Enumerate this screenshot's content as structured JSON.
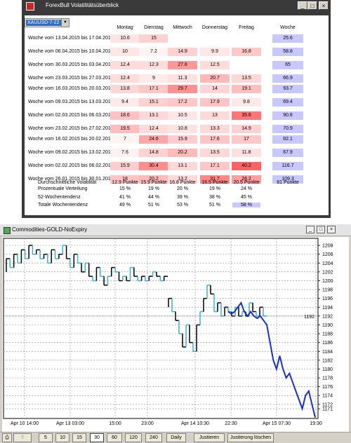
{
  "vol_window": {
    "title": "ForexBull Volatilitätsüberblick",
    "symbol": "XAUUSD-7-22",
    "columns": [
      "Montag",
      "Dienstag",
      "Mittwoch",
      "Donnerstag",
      "Freitag",
      "Woche"
    ],
    "groups": [
      [
        {
          "label": "Woche vom 13.04.2015 bis 17.04.2015",
          "values": [
            "10.6",
            "15",
            "",
            "",
            "",
            "25.6"
          ]
        },
        {
          "label": "Woche vom 06.04.2015 bis 10.04.2015",
          "values": [
            "10",
            "7.2",
            "14.9",
            "9.9",
            "16.8",
            "58.8"
          ]
        },
        {
          "label": "Woche vom 30.03.2015 bis 03.04.2015",
          "values": [
            "12.4",
            "12.3",
            "27.8",
            "12.5",
            "",
            "65"
          ]
        },
        {
          "label": "Woche vom 23.03.2015 bis 27.03.2015",
          "values": [
            "12.4",
            "9",
            "11.3",
            "20.7",
            "13.5",
            "66.9"
          ]
        }
      ],
      [
        {
          "label": "Woche vom 16.03.2015 bis 20.03.2015",
          "values": [
            "13.8",
            "17.1",
            "29.7",
            "14",
            "19.1",
            "93.7"
          ]
        },
        {
          "label": "Woche vom 09.03.2015 bis 13.03.2015",
          "values": [
            "9.4",
            "15.1",
            "17.2",
            "17.9",
            "9.8",
            "69.4"
          ]
        },
        {
          "label": "Woche vom 02.03.2015 bis 06.03.2015",
          "values": [
            "18.6",
            "13.1",
            "10.5",
            "13",
            "35.6",
            "90.8"
          ]
        },
        {
          "label": "Woche vom 23.02.2015 bis 27.02.2015",
          "values": [
            "19.5",
            "12.4",
            "10.8",
            "13.3",
            "14.9",
            "70.9"
          ]
        }
      ],
      [
        {
          "label": "Woche vom 16.02.2015 bis 20.02.2015",
          "values": [
            "7",
            "24.6",
            "15.9",
            "17.6",
            "17",
            "82.1"
          ]
        },
        {
          "label": "Woche vom 09.02.2015 bis 13.02.2015",
          "values": [
            "7.6",
            "14.8",
            "20.2",
            "13.5",
            "11.8",
            "67.9"
          ]
        },
        {
          "label": "Woche vom 02.02.2015 bis 06.02.2015",
          "values": [
            "15.9",
            "30.4",
            "13.1",
            "17.1",
            "40.2",
            "116.7"
          ]
        },
        {
          "label": "Woche vom 26.01.2015 bis 30.01.2015",
          "values": [
            "18",
            "20.2",
            "13.2",
            "31.7",
            "26.2",
            "109.3"
          ]
        }
      ]
    ],
    "stats": [
      {
        "label": "Durchschnittliche Volatilität",
        "values": [
          "12.9 Punkte",
          "15.9 Punkte",
          "16.8 Punkte",
          "16.5 Punkte",
          "20.5 Punkte",
          "81 Punkte"
        ]
      },
      {
        "label": "Prozentuale Verteilung",
        "values": [
          "15 %",
          "19 %",
          "20 %",
          "19 %",
          "24 %",
          ""
        ]
      },
      {
        "label": "52-Wochentendenz",
        "values": [
          "41 %",
          "44 %",
          "39 %",
          "38 %",
          "45 %",
          ""
        ]
      },
      {
        "label": "Totale Wochentendenz",
        "values": [
          "49 %",
          "51 %",
          "53 %",
          "51 %",
          "58 %",
          ""
        ]
      }
    ]
  },
  "chart_window": {
    "title": "Commodities-GOLD-NoExpiry",
    "current_price": "1192",
    "toolbar": {
      "periods": [
        "5",
        "10",
        "15",
        "30",
        "60",
        "120",
        "240",
        "Daily"
      ],
      "selected_period": "30",
      "adjust_label": "Justieren",
      "clear_adjust_label": "Justierung löschen"
    }
  },
  "chart_data": {
    "type": "line",
    "xlabel": "",
    "ylabel": "",
    "x_ticks": [
      "Apr 10 14:00",
      "Apr 13 03:00",
      "15:00",
      "23:00",
      "Apr 14 10:30",
      "22:30",
      "Apr 15 07:30",
      "19:30"
    ],
    "y_ticks": [
      1208,
      1206,
      1204,
      1202,
      1200,
      1198,
      1196,
      1194,
      1192,
      1190,
      1188,
      1186,
      1184,
      1182,
      1180,
      1178,
      1176,
      1174,
      1172,
      1171
    ],
    "ylim": [
      1168.8,
      1209.6
    ],
    "grid": true,
    "series": [
      {
        "colors": [
          "#000000",
          "#3ab4d2"
        ],
        "values": [
          1202,
          1205,
          1203,
          1206,
          1204,
          1207,
          1205,
          1208,
          1206,
          1207,
          1205,
          1206,
          1204,
          1207,
          1205,
          1206,
          1208,
          1205,
          1203,
          1206,
          1204,
          1202,
          1204,
          1201,
          1200,
          1203,
          1201,
          1199,
          1201,
          1203,
          1202,
          1200,
          1201,
          1200,
          1203,
          1201,
          1200,
          1201,
          1200,
          1201,
          1202,
          1201,
          1200,
          1201
        ]
      },
      {
        "colors": [
          "#000000",
          "#3ab4d2"
        ],
        "values": [
          1194,
          1196,
          1193,
          1191,
          1188,
          1185,
          1190,
          1186,
          1184,
          1190,
          1193,
          1196,
          1199,
          1197,
          1193,
          1195,
          1192,
          1194,
          1193,
          1192,
          1194,
          1192,
          1193,
          1192,
          1195,
          1193,
          1192,
          1194,
          1192
        ]
      },
      {
        "colors": [
          "#1a2ec8"
        ],
        "values": [
          1193,
          1192.5,
          1193,
          1194,
          1195,
          1193,
          1192,
          1193,
          1192,
          1191.5,
          1192,
          1191,
          1190,
          1186,
          1182,
          1180,
          1183,
          1180,
          1178,
          1179,
          1177,
          1175,
          1173,
          1171,
          1174,
          1175,
          1172,
          1169
        ]
      }
    ]
  }
}
